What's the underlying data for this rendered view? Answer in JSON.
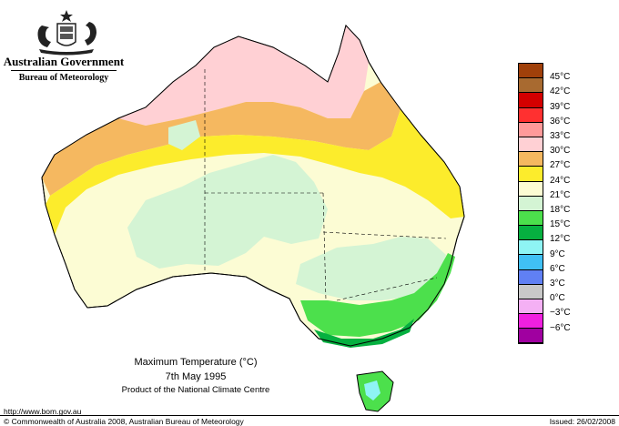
{
  "header": {
    "government": "Australian Government",
    "bureau": "Bureau of Meteorology"
  },
  "legend": {
    "items": [
      {
        "label": "45°C",
        "color": "#a0400a"
      },
      {
        "label": "42°C",
        "color": "#a86a30"
      },
      {
        "label": "39°C",
        "color": "#d40000"
      },
      {
        "label": "36°C",
        "color": "#ff3030"
      },
      {
        "label": "33°C",
        "color": "#ff9a9a"
      },
      {
        "label": "30°C",
        "color": "#ffd0d4"
      },
      {
        "label": "27°C",
        "color": "#f5b860"
      },
      {
        "label": "24°C",
        "color": "#fcec2c"
      },
      {
        "label": "21°C",
        "color": "#fcfcd4"
      },
      {
        "label": "18°C",
        "color": "#d4f4d4"
      },
      {
        "label": "15°C",
        "color": "#4ce04c"
      },
      {
        "label": "12°C",
        "color": "#06b040"
      },
      {
        "label": "9°C",
        "color": "#8ef4f4"
      },
      {
        "label": "6°C",
        "color": "#40c0f4"
      },
      {
        "label": "3°C",
        "color": "#6080f4"
      },
      {
        "label": "0°C",
        "color": "#c8c8c8"
      },
      {
        "label": "−3°C",
        "color": "#f4b0f4"
      },
      {
        "label": "−6°C",
        "color": "#f020e0"
      },
      {
        "label": "",
        "color": "#a000a0"
      }
    ]
  },
  "caption": {
    "title": "Maximum Temperature (°C)",
    "date": "7th May 1995",
    "product": "Product of the National Climate Centre"
  },
  "footer": {
    "url": "http://www.bom.gov.au",
    "copyright": "© Commonwealth of Australia 2008, Australian Bureau of Meteorology",
    "issued": "Issued: 26/02/2008"
  }
}
